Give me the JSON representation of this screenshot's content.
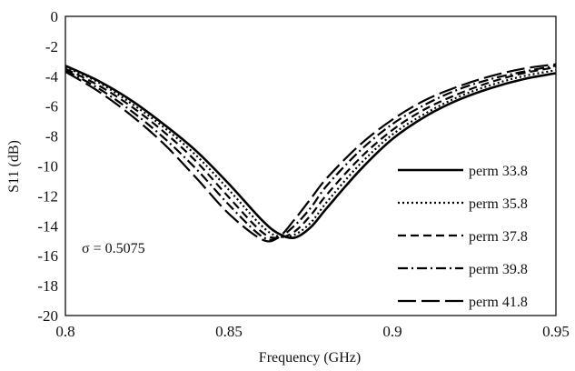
{
  "chart_data": {
    "type": "line",
    "title": "",
    "xlabel": "Frequency (GHz)",
    "ylabel": "S11 (dB)",
    "xlim": [
      0.8,
      0.95
    ],
    "ylim": [
      -20,
      0
    ],
    "xticks": [
      0.8,
      0.85,
      0.9,
      0.95
    ],
    "xtick_labels": [
      "0.8",
      "0.85",
      "0.9",
      "0.95"
    ],
    "yticks": [
      0,
      -2,
      -4,
      -6,
      -8,
      -10,
      -12,
      -14,
      -16,
      -18,
      -20
    ],
    "ytick_labels": [
      "0",
      "-2",
      "-4",
      "-6",
      "-8",
      "-10",
      "-12",
      "-14",
      "-16",
      "-18",
      "-20"
    ],
    "grid": false,
    "legend_position": "right",
    "annotation": "σ = 0.5075",
    "line_color": "#000000",
    "series": [
      {
        "name": "perm 33.8",
        "style": "solid",
        "x": [
          0.8,
          0.81,
          0.82,
          0.83,
          0.84,
          0.85,
          0.86,
          0.865,
          0.87,
          0.875,
          0.88,
          0.89,
          0.9,
          0.91,
          0.92,
          0.93,
          0.94,
          0.95
        ],
        "y": [
          -3.3,
          -4.3,
          -5.6,
          -7.2,
          -9.0,
          -11.2,
          -13.6,
          -14.5,
          -14.8,
          -14.1,
          -12.8,
          -10.3,
          -8.2,
          -6.7,
          -5.6,
          -4.8,
          -4.2,
          -3.8
        ]
      },
      {
        "name": "perm 35.8",
        "style": "dotted",
        "x": [
          0.8,
          0.81,
          0.82,
          0.83,
          0.84,
          0.85,
          0.86,
          0.865,
          0.87,
          0.875,
          0.88,
          0.89,
          0.9,
          0.91,
          0.92,
          0.93,
          0.94,
          0.95
        ],
        "y": [
          -3.4,
          -4.4,
          -5.8,
          -7.4,
          -9.3,
          -11.6,
          -14.0,
          -14.7,
          -14.6,
          -13.8,
          -12.4,
          -9.9,
          -7.9,
          -6.5,
          -5.4,
          -4.6,
          -4.0,
          -3.6
        ]
      },
      {
        "name": "perm 37.8",
        "style": "dashed",
        "x": [
          0.8,
          0.81,
          0.82,
          0.83,
          0.84,
          0.85,
          0.86,
          0.865,
          0.87,
          0.875,
          0.88,
          0.89,
          0.9,
          0.91,
          0.92,
          0.93,
          0.94,
          0.95
        ],
        "y": [
          -3.5,
          -4.6,
          -6.0,
          -7.7,
          -9.7,
          -12.1,
          -14.4,
          -14.8,
          -14.4,
          -13.3,
          -11.9,
          -9.5,
          -7.6,
          -6.2,
          -5.2,
          -4.4,
          -3.8,
          -3.4
        ]
      },
      {
        "name": "perm 39.8",
        "style": "dashdot",
        "x": [
          0.8,
          0.81,
          0.82,
          0.83,
          0.84,
          0.85,
          0.86,
          0.865,
          0.87,
          0.875,
          0.88,
          0.89,
          0.9,
          0.91,
          0.92,
          0.93,
          0.94,
          0.95
        ],
        "y": [
          -3.6,
          -4.8,
          -6.3,
          -8.1,
          -10.2,
          -12.6,
          -14.7,
          -14.8,
          -14.0,
          -12.8,
          -11.3,
          -9.0,
          -7.2,
          -5.9,
          -4.9,
          -4.2,
          -3.7,
          -3.3
        ]
      },
      {
        "name": "perm 41.8",
        "style": "longdash",
        "x": [
          0.8,
          0.81,
          0.82,
          0.83,
          0.84,
          0.85,
          0.86,
          0.865,
          0.87,
          0.875,
          0.88,
          0.89,
          0.9,
          0.91,
          0.92,
          0.93,
          0.94,
          0.95
        ],
        "y": [
          -3.7,
          -5.0,
          -6.6,
          -8.5,
          -10.8,
          -13.2,
          -14.9,
          -14.8,
          -13.6,
          -12.2,
          -10.8,
          -8.6,
          -6.9,
          -5.6,
          -4.7,
          -4.0,
          -3.5,
          -3.2
        ]
      }
    ]
  }
}
